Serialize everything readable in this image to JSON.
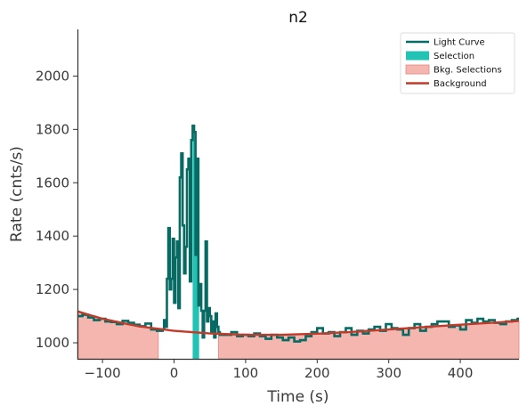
{
  "chart_data": {
    "type": "line",
    "title": "n2",
    "xlabel": "Time (s)",
    "ylabel": "Rate (cnts/s)",
    "xlim": [
      -135,
      482
    ],
    "ylim": [
      940,
      2175
    ],
    "x_ticks": [
      -100,
      0,
      100,
      200,
      300,
      400
    ],
    "y_ticks": [
      1000,
      1200,
      1400,
      1600,
      1800,
      2000
    ],
    "x_tick_labels": [
      "−100",
      "0",
      "100",
      "200",
      "300",
      "400"
    ],
    "y_tick_labels": [
      "1000",
      "1200",
      "1400",
      "1600",
      "1800",
      "2000"
    ],
    "grid": false,
    "legend_position": "top-right",
    "colors": {
      "light_curve": "#076b64",
      "selection": "#22c2b4",
      "bkg_fill": "#f4b6ae",
      "bkg_edge": "#e58a80",
      "background": "#c23b2a",
      "axis": "#333333"
    },
    "legend": [
      {
        "label": "Light Curve",
        "kind": "line",
        "color": "#076b64"
      },
      {
        "label": "Selection",
        "kind": "patch",
        "color": "#22c2b4"
      },
      {
        "label": "Bkg. Selections",
        "kind": "patch",
        "color": "#f4b6ae"
      },
      {
        "label": "Background",
        "kind": "line",
        "color": "#c23b2a"
      }
    ],
    "bkg_selections": [
      [
        -135,
        -22
      ],
      [
        62,
        482
      ]
    ],
    "source_selection": [
      26,
      35
    ],
    "background_model": {
      "x": [
        -135,
        -100,
        -50,
        0,
        50,
        100,
        150,
        200,
        250,
        300,
        350,
        400,
        450,
        482
      ],
      "y": [
        1118,
        1090,
        1062,
        1045,
        1035,
        1030,
        1030,
        1034,
        1041,
        1050,
        1059,
        1068,
        1076,
        1082
      ]
    },
    "series": [
      {
        "name": "Light Curve",
        "step": "post",
        "x": [
          -135,
          -128,
          -120,
          -112,
          -104,
          -96,
          -88,
          -80,
          -72,
          -64,
          -56,
          -48,
          -40,
          -32,
          -24,
          -16,
          -14,
          -12,
          -10,
          -8,
          -6,
          -4,
          -2,
          0,
          2,
          4,
          6,
          8,
          10,
          12,
          14,
          16,
          18,
          20,
          22,
          24,
          26,
          28,
          30,
          32,
          34,
          36,
          38,
          40,
          42,
          44,
          46,
          48,
          50,
          52,
          54,
          56,
          58,
          60,
          62,
          64,
          72,
          80,
          88,
          96,
          104,
          112,
          120,
          128,
          136,
          144,
          152,
          160,
          168,
          176,
          184,
          192,
          200,
          208,
          216,
          224,
          232,
          240,
          248,
          256,
          264,
          272,
          280,
          288,
          296,
          304,
          312,
          320,
          328,
          336,
          344,
          352,
          360,
          368,
          376,
          384,
          392,
          400,
          408,
          416,
          424,
          432,
          440,
          448,
          456,
          464,
          472,
          480,
          482
        ],
        "y": [
          1100,
          1105,
          1095,
          1085,
          1090,
          1080,
          1078,
          1070,
          1082,
          1075,
          1068,
          1062,
          1072,
          1050,
          1045,
          1050,
          1085,
          1060,
          1240,
          1430,
          1200,
          1240,
          1390,
          1150,
          1320,
          1380,
          1130,
          1620,
          1710,
          1440,
          1260,
          1360,
          1650,
          1690,
          1230,
          1760,
          1814,
          1790,
          1330,
          1690,
          1140,
          1220,
          1120,
          1020,
          1120,
          1380,
          1080,
          1130,
          1100,
          1040,
          1080,
          1020,
          1110,
          1060,
          1040,
          1030,
          1030,
          1040,
          1025,
          1030,
          1025,
          1035,
          1025,
          1015,
          1030,
          1020,
          1010,
          1020,
          1005,
          1010,
          1025,
          1040,
          1055,
          1035,
          1040,
          1025,
          1040,
          1055,
          1030,
          1045,
          1035,
          1050,
          1060,
          1045,
          1070,
          1055,
          1050,
          1030,
          1055,
          1070,
          1045,
          1060,
          1070,
          1080,
          1080,
          1060,
          1065,
          1050,
          1085,
          1075,
          1090,
          1080,
          1085,
          1075,
          1070,
          1080,
          1085,
          1090,
          1090
        ]
      }
    ]
  }
}
